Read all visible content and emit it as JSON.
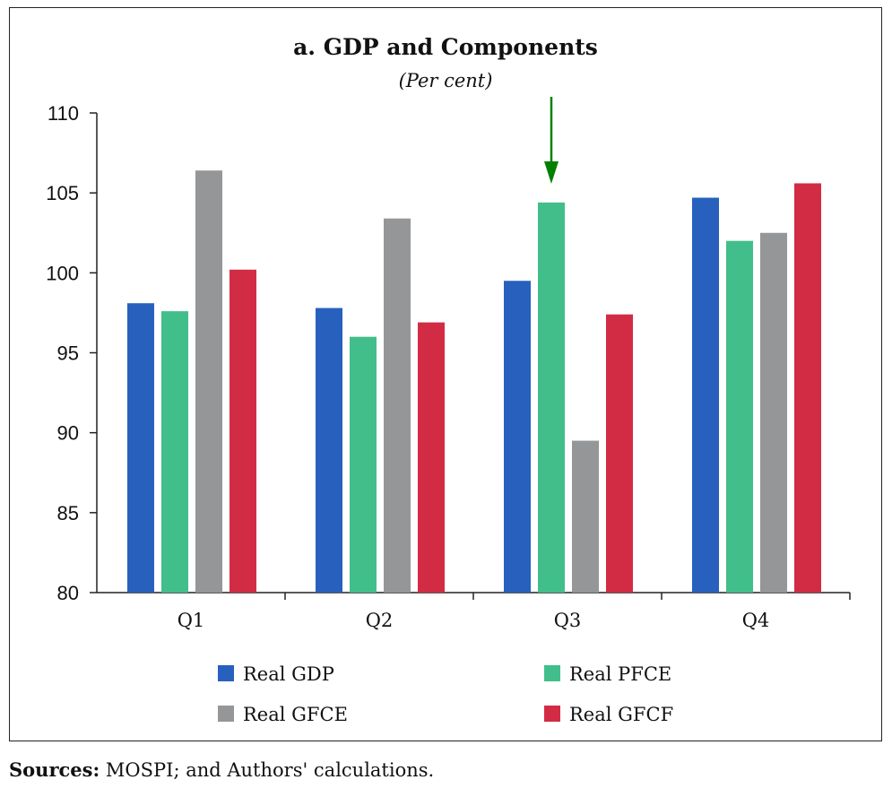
{
  "chart_data": {
    "type": "bar",
    "title": "a. GDP and Components",
    "subtitle": "(Per cent)",
    "categories": [
      "Q1",
      "Q2",
      "Q3",
      "Q4"
    ],
    "series": [
      {
        "name": "Real GDP",
        "color": "#2860BE",
        "values": [
          98.1,
          97.8,
          99.5,
          104.7
        ]
      },
      {
        "name": "Real PFCE",
        "color": "#42BE8A",
        "values": [
          97.6,
          96.0,
          104.4,
          102.0
        ]
      },
      {
        "name": "Real GFCE",
        "color": "#959698",
        "values": [
          106.4,
          103.4,
          89.5,
          102.5
        ]
      },
      {
        "name": "Real GFCF",
        "color": "#D22C44",
        "values": [
          100.2,
          96.9,
          97.4,
          105.6
        ]
      }
    ],
    "ylim": [
      80,
      110
    ],
    "yticks": [
      80,
      85,
      90,
      95,
      100,
      105,
      110
    ],
    "xlabel": "",
    "ylabel": "",
    "legend_position": "bottom",
    "annotation": {
      "type": "arrow",
      "target": "Q3 Real PFCE",
      "color": "#008000"
    }
  },
  "sources": {
    "label": "Sources:",
    "text": " MOSPI; and Authors' calculations."
  }
}
